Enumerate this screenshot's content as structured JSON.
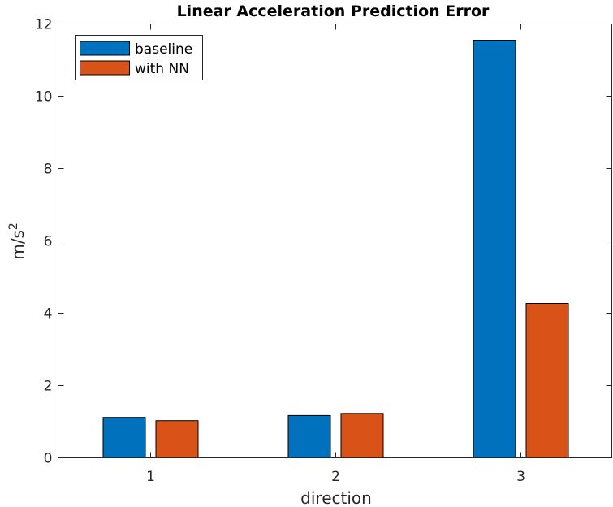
{
  "chart_data": {
    "type": "bar",
    "title": "Linear Acceleration Prediction Error",
    "xlabel": "direction",
    "ylabel": "m/s",
    "ylabel_superscript": "2",
    "categories": [
      "1",
      "2",
      "3"
    ],
    "series": [
      {
        "name": "baseline",
        "color": "#0072BD",
        "values": [
          1.12,
          1.17,
          11.55
        ]
      },
      {
        "name": "with NN",
        "color": "#D95319",
        "values": [
          1.03,
          1.23,
          4.27
        ]
      }
    ],
    "ylim": [
      0,
      12
    ],
    "yticks": [
      "0",
      "2",
      "4",
      "6",
      "8",
      "10",
      "12"
    ],
    "grid": false,
    "legend_position": "top-left"
  }
}
